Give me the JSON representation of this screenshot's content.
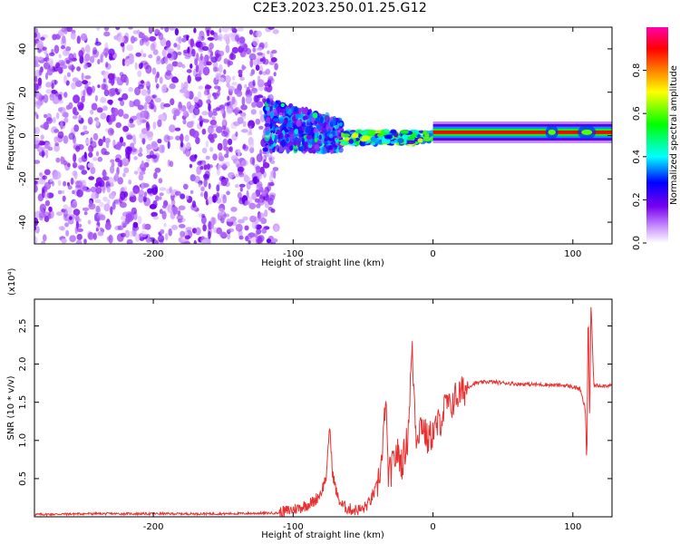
{
  "title": "C2E3.2023.250.01.25.G12",
  "chart_data": [
    {
      "type": "heatmap",
      "xlabel": "Height of straight line (km)",
      "ylabel": "Frequency (Hz)",
      "xlim": [
        -285,
        128
      ],
      "ylim": [
        -50,
        50
      ],
      "x_ticks": [
        -200,
        -100,
        0,
        100
      ],
      "y_ticks": [
        -40,
        -20,
        0,
        20,
        40
      ],
      "colorbar": {
        "label": "Normalized spectral amplitude",
        "range": [
          0.0,
          1.0
        ],
        "ticks": [
          0.0,
          0.2,
          0.4,
          0.6,
          0.8
        ],
        "colormap": [
          "#ffffff",
          "#cc99ff",
          "#7700ee",
          "#0000ff",
          "#00ffff",
          "#00ff00",
          "#ffff00",
          "#ff8000",
          "#ff0000",
          "#ff00aa"
        ]
      },
      "regions": [
        {
          "x_range": [
            -285,
            -120
          ],
          "freq_range": [
            -50,
            50
          ],
          "amplitude": 0.12
        },
        {
          "x_range": [
            -120,
            -65
          ],
          "freq_center": 5,
          "freq_halfwidth": 12,
          "amplitude": 0.35
        },
        {
          "x_range": [
            -65,
            0
          ],
          "freq_center": 0,
          "freq_halfwidth": 3,
          "amplitude": 0.55
        },
        {
          "x_range": [
            0,
            128
          ],
          "freq_center": 1.5,
          "freq_halfwidth": 1.5,
          "amplitude": 0.95
        }
      ]
    },
    {
      "type": "line",
      "xlabel": "Height of straight line (km)",
      "ylabel": "SNR (10 * v/v)",
      "yscale_label": "(x10⁴)",
      "xlim": [
        -285,
        128
      ],
      "ylim": [
        0,
        2.85
      ],
      "x_ticks": [
        -200,
        -100,
        0,
        100
      ],
      "y_ticks": [
        0.5,
        1.0,
        1.5,
        2.0,
        2.5
      ],
      "color": "#e83030",
      "series": [
        {
          "x": [
            -285,
            -250,
            -200,
            -150,
            -110,
            -95,
            -85,
            -80,
            -76,
            -74,
            -72,
            -70,
            -68,
            -65,
            -60,
            -55,
            -50,
            -45,
            -40,
            -36,
            -34,
            -32,
            -30,
            -26,
            -22,
            -18,
            -15,
            -12,
            -8,
            -4,
            0,
            5,
            10,
            12,
            15,
            20,
            25,
            30,
            40,
            60,
            80,
            95,
            105,
            109,
            110,
            111,
            112,
            113,
            115,
            128
          ],
          "y": [
            0.03,
            0.04,
            0.04,
            0.04,
            0.05,
            0.12,
            0.2,
            0.32,
            0.55,
            1.22,
            0.6,
            0.4,
            0.25,
            0.15,
            0.1,
            0.09,
            0.1,
            0.2,
            0.4,
            0.8,
            1.6,
            0.55,
            0.6,
            0.85,
            0.7,
            1.05,
            2.2,
            1.05,
            1.25,
            1.0,
            1.1,
            1.25,
            1.5,
            1.4,
            1.55,
            1.62,
            1.7,
            1.75,
            1.77,
            1.74,
            1.73,
            1.72,
            1.68,
            1.4,
            0.65,
            2.8,
            1.2,
            2.8,
            1.72,
            1.72
          ]
        }
      ]
    }
  ]
}
